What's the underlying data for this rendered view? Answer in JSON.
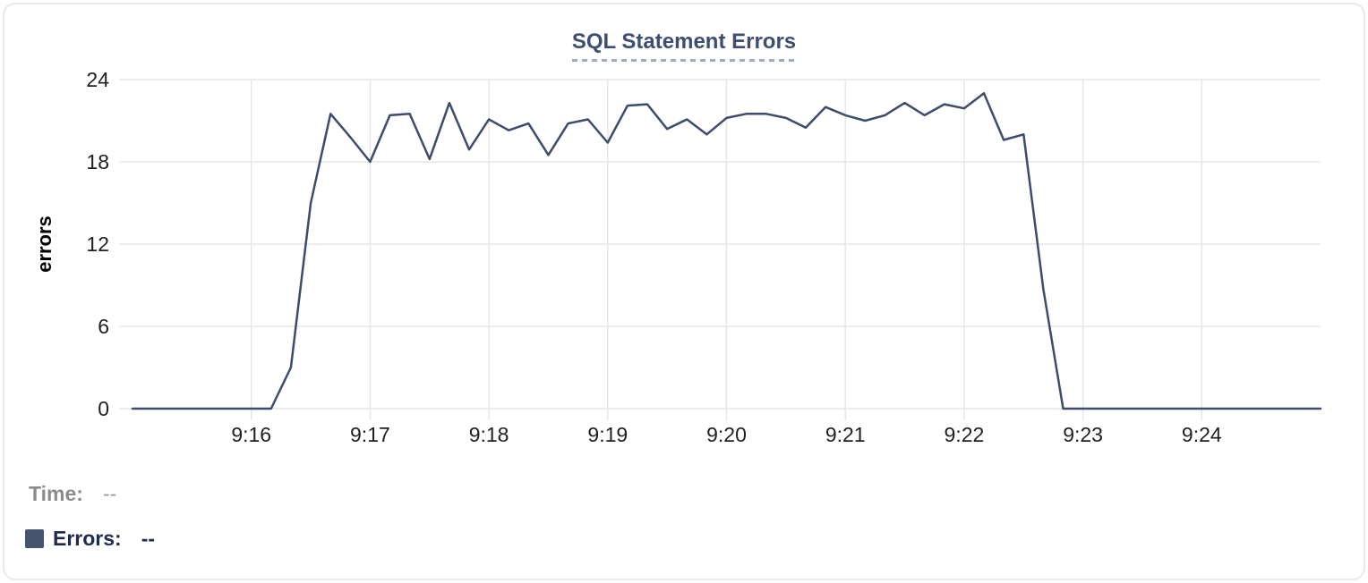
{
  "title": "SQL Statement Errors",
  "colors": {
    "line": "#3d4b6d",
    "legend_swatch": "#46546e",
    "title_text": "#3e4e71",
    "grid": "#e6e6e6",
    "axis_label": "#1f1f1f",
    "time_label": "#8b8b8b",
    "errors_label": "#1e2b4d",
    "card_border": "#e9e9e9"
  },
  "readout": {
    "time_label": "Time:",
    "time_value": "--",
    "errors_label": "Errors:",
    "errors_value": "--"
  },
  "chart_data": {
    "type": "line",
    "title": "SQL Statement Errors",
    "xlabel": "",
    "ylabel": "errors",
    "ylim": [
      0,
      24
    ],
    "yticks": [
      0,
      6,
      12,
      18,
      24
    ],
    "xticks": [
      "9:16",
      "9:17",
      "9:18",
      "9:19",
      "9:20",
      "9:21",
      "9:22",
      "9:23",
      "9:24"
    ],
    "grid": true,
    "legend_position": "none",
    "x_start": "9:15:00",
    "x_end": "9:25:00",
    "interval_seconds": 10,
    "series": [
      {
        "name": "Errors",
        "color": "#3d4b6d",
        "values": [
          0,
          0,
          0,
          0,
          0,
          0,
          0,
          0,
          3,
          15,
          21.5,
          19.8,
          18,
          21.4,
          21.5,
          18.2,
          22.3,
          18.9,
          21.1,
          20.3,
          20.8,
          18.5,
          20.8,
          21.1,
          19.4,
          22.1,
          22.2,
          20.4,
          21.1,
          20,
          21.2,
          21.5,
          21.5,
          21.2,
          20.5,
          22,
          21.4,
          21,
          21.4,
          22.3,
          21.4,
          22.2,
          21.9,
          23,
          19.6,
          20,
          8.7,
          0,
          0,
          0,
          0,
          0,
          0,
          0,
          0,
          0,
          0,
          0,
          0,
          0,
          0
        ]
      }
    ]
  }
}
